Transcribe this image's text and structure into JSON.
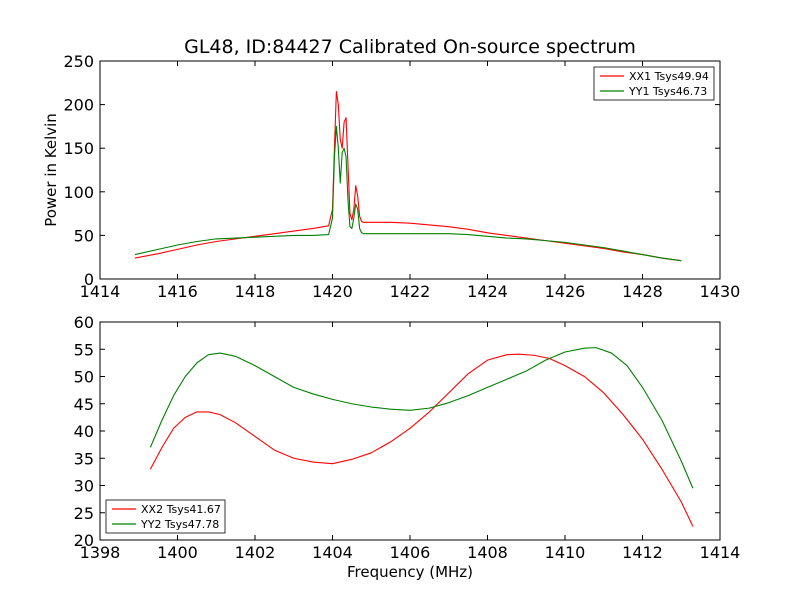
{
  "chart_data": [
    {
      "type": "line",
      "title": "GL48, ID:84427 Calibrated On-source spectrum",
      "xlabel": "",
      "ylabel": "Power in Kelvin",
      "xlim": [
        1414,
        1430
      ],
      "ylim": [
        0,
        250
      ],
      "xticks": [
        "1414",
        "1416",
        "1418",
        "1420",
        "1422",
        "1424",
        "1426",
        "1428",
        "1430"
      ],
      "yticks": [
        "0",
        "50",
        "100",
        "150",
        "200",
        "250"
      ],
      "grid": false,
      "legend_position": "top-right",
      "series": [
        {
          "name": "XX1 Tsys49.94",
          "color": "#ff0000",
          "x": [
            1414.9,
            1415.5,
            1416.0,
            1416.5,
            1417.0,
            1417.5,
            1418.0,
            1418.5,
            1419.0,
            1419.5,
            1419.9,
            1420.0,
            1420.05,
            1420.1,
            1420.15,
            1420.2,
            1420.25,
            1420.3,
            1420.35,
            1420.4,
            1420.45,
            1420.5,
            1420.55,
            1420.6,
            1420.65,
            1420.7,
            1420.75,
            1420.8,
            1421.0,
            1421.5,
            1422.0,
            1422.5,
            1423.0,
            1423.5,
            1424.0,
            1424.5,
            1425.0,
            1425.5,
            1426.0,
            1426.5,
            1427.0,
            1427.5,
            1428.0,
            1428.5,
            1429.0
          ],
          "values": [
            24,
            29,
            34,
            39,
            43,
            46,
            49,
            52,
            55,
            58,
            61,
            80,
            150,
            215,
            200,
            160,
            150,
            180,
            185,
            130,
            75,
            68,
            80,
            107,
            95,
            72,
            66,
            65,
            65,
            65,
            64,
            62,
            60,
            57,
            53,
            50,
            47,
            44,
            41,
            38,
            35,
            31,
            28,
            24,
            21
          ]
        },
        {
          "name": "YY1 Tsys46.73",
          "color": "#008000",
          "x": [
            1414.9,
            1415.5,
            1416.0,
            1416.5,
            1417.0,
            1417.5,
            1418.0,
            1418.5,
            1419.0,
            1419.5,
            1419.9,
            1420.0,
            1420.05,
            1420.1,
            1420.15,
            1420.2,
            1420.25,
            1420.3,
            1420.35,
            1420.4,
            1420.45,
            1420.5,
            1420.55,
            1420.6,
            1420.65,
            1420.7,
            1420.75,
            1420.8,
            1421.0,
            1421.5,
            1422.0,
            1422.5,
            1423.0,
            1423.5,
            1424.0,
            1424.5,
            1425.0,
            1425.5,
            1426.0,
            1426.5,
            1427.0,
            1427.5,
            1428.0,
            1428.5,
            1429.0
          ],
          "values": [
            28,
            34,
            39,
            43,
            46,
            47,
            48,
            49,
            50,
            50,
            51,
            70,
            140,
            175,
            150,
            110,
            145,
            150,
            140,
            90,
            60,
            58,
            70,
            86,
            80,
            58,
            53,
            52,
            52,
            52,
            52,
            52,
            52,
            51,
            49,
            47,
            46,
            44,
            42,
            39,
            36,
            32,
            28,
            24,
            21
          ]
        }
      ]
    },
    {
      "type": "line",
      "title": "",
      "xlabel": "Frequency (MHz)",
      "ylabel": "",
      "xlim": [
        1398,
        1414
      ],
      "ylim": [
        20,
        60
      ],
      "xticks": [
        "1398",
        "1400",
        "1402",
        "1404",
        "1406",
        "1408",
        "1410",
        "1412",
        "1414"
      ],
      "yticks": [
        "20",
        "25",
        "30",
        "35",
        "40",
        "45",
        "50",
        "55",
        "60"
      ],
      "grid": false,
      "legend_position": "bottom-left",
      "series": [
        {
          "name": "XX2 Tsys41.67",
          "color": "#ff0000",
          "x": [
            1399.3,
            1399.6,
            1399.9,
            1400.2,
            1400.5,
            1400.8,
            1401.1,
            1401.5,
            1402.0,
            1402.5,
            1403.0,
            1403.5,
            1404.0,
            1404.5,
            1405.0,
            1405.5,
            1406.0,
            1406.5,
            1407.0,
            1407.5,
            1408.0,
            1408.5,
            1408.8,
            1409.2,
            1409.6,
            1410.0,
            1410.5,
            1411.0,
            1411.5,
            1412.0,
            1412.5,
            1413.0,
            1413.3
          ],
          "values": [
            33,
            37,
            40.5,
            42.5,
            43.5,
            43.5,
            43,
            41.5,
            39,
            36.5,
            35,
            34.3,
            34,
            34.8,
            36,
            38,
            40.5,
            43.5,
            47,
            50.5,
            53,
            54,
            54.1,
            53.9,
            53.3,
            52,
            50,
            47,
            43,
            38.5,
            33,
            27,
            22.5
          ]
        },
        {
          "name": "YY2 Tsys47.78",
          "color": "#008000",
          "x": [
            1399.3,
            1399.6,
            1399.9,
            1400.2,
            1400.5,
            1400.8,
            1401.1,
            1401.5,
            1402.0,
            1402.5,
            1403.0,
            1403.5,
            1404.0,
            1404.5,
            1405.0,
            1405.5,
            1406.0,
            1406.5,
            1407.0,
            1407.5,
            1408.0,
            1408.5,
            1409.0,
            1409.5,
            1410.0,
            1410.5,
            1410.8,
            1411.2,
            1411.6,
            1412.0,
            1412.5,
            1413.0,
            1413.3
          ],
          "values": [
            37,
            42,
            46.5,
            50,
            52.5,
            54,
            54.3,
            53.7,
            52,
            50,
            48,
            46.8,
            45.8,
            45,
            44.4,
            44,
            43.8,
            44.2,
            45.2,
            46.5,
            48,
            49.5,
            51,
            53,
            54.5,
            55.2,
            55.3,
            54.3,
            52,
            48,
            42,
            34.5,
            29.5
          ]
        }
      ]
    }
  ]
}
